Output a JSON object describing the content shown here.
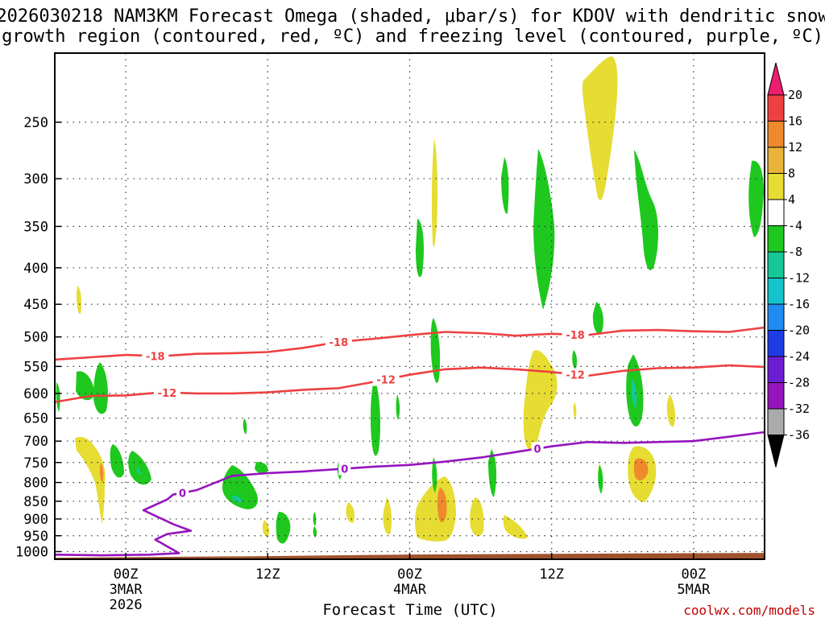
{
  "chart_data": {
    "type": "heatmap",
    "title_lines": [
      "2026030218 NAM3KM Forecast Omega (shaded, μbar/s) for KDOV with dendritic snow",
      "growth region (contoured, red, ºC) and freezing level (contoured, purple, ºC)"
    ],
    "xlabel": "Forecast Time (UTC)",
    "credit": "coolwx.com/models",
    "x_ticks": [
      {
        "hours": 6,
        "lines": [
          "00Z",
          "3MAR",
          "2026"
        ]
      },
      {
        "hours": 18,
        "lines": [
          "12Z"
        ]
      },
      {
        "hours": 30,
        "lines": [
          "00Z",
          "4MAR"
        ]
      },
      {
        "hours": 42,
        "lines": [
          "12Z"
        ]
      },
      {
        "hours": 54,
        "lines": [
          "00Z",
          "5MAR"
        ]
      }
    ],
    "xlim_hours": [
      0,
      60
    ],
    "y_scale": "log-pressure",
    "ylim_hPa": [
      1025,
      200
    ],
    "y_ticks": [
      250,
      300,
      350,
      400,
      450,
      500,
      550,
      600,
      650,
      700,
      750,
      800,
      850,
      900,
      950,
      1000
    ],
    "grid": true,
    "colorbar": {
      "levels": [
        20,
        16,
        12,
        8,
        4,
        -4,
        -8,
        -12,
        -16,
        -20,
        -24,
        -28,
        -32,
        -36
      ],
      "colors": [
        "#ee1e6e",
        "#ee4040",
        "#ee8a2c",
        "#e8b43a",
        "#e6dc32",
        "#ffffff",
        "#1ec81e",
        "#16c896",
        "#14c4cc",
        "#1e8cf0",
        "#1e3ce6",
        "#6e1ed2",
        "#9614be",
        "#aaaaaa",
        "#000000"
      ]
    },
    "series": [
      {
        "name": "-18",
        "color": "#ee4040",
        "points": [
          [
            0,
            538
          ],
          [
            3,
            534
          ],
          [
            6,
            530
          ],
          [
            9,
            532
          ],
          [
            12,
            528
          ],
          [
            15,
            527
          ],
          [
            18,
            525
          ],
          [
            21,
            518
          ],
          [
            24,
            508
          ],
          [
            27,
            503
          ],
          [
            30,
            497
          ],
          [
            33,
            492
          ],
          [
            36,
            494
          ],
          [
            39,
            498
          ],
          [
            42,
            495
          ],
          [
            45,
            497
          ],
          [
            48,
            490
          ],
          [
            51,
            489
          ],
          [
            54,
            491
          ],
          [
            57,
            492
          ],
          [
            60,
            485
          ]
        ],
        "labels": [
          {
            "hours": 8.5,
            "text": "-18"
          },
          {
            "hours": 24,
            "text": "-18"
          },
          {
            "hours": 44,
            "text": "-18"
          }
        ]
      },
      {
        "name": "-12",
        "color": "#ee4040",
        "points": [
          [
            0,
            617
          ],
          [
            3,
            605
          ],
          [
            6,
            604
          ],
          [
            9,
            598
          ],
          [
            12,
            600
          ],
          [
            15,
            600
          ],
          [
            18,
            598
          ],
          [
            21,
            593
          ],
          [
            24,
            590
          ],
          [
            27,
            578
          ],
          [
            30,
            565
          ],
          [
            33,
            555
          ],
          [
            36,
            552
          ],
          [
            39,
            555
          ],
          [
            42,
            560
          ],
          [
            45,
            567
          ],
          [
            48,
            558
          ],
          [
            51,
            553
          ],
          [
            54,
            552
          ],
          [
            57,
            548
          ],
          [
            60,
            551
          ]
        ],
        "labels": [
          {
            "hours": 9.5,
            "text": "-12"
          },
          {
            "hours": 28,
            "text": "-12"
          },
          {
            "hours": 44,
            "text": "-12"
          }
        ]
      },
      {
        "name": "0",
        "color": "#9614be",
        "points": [
          [
            0,
            1010
          ],
          [
            4,
            1012
          ],
          [
            8,
            1010
          ],
          [
            10.5,
            1005
          ],
          [
            8.5,
            962
          ],
          [
            9.5,
            945
          ],
          [
            11.5,
            935
          ],
          [
            10,
            915
          ],
          [
            7.5,
            875
          ],
          [
            9.5,
            845
          ],
          [
            10,
            832
          ],
          [
            12,
            820
          ],
          [
            15,
            783
          ],
          [
            18,
            776
          ],
          [
            21,
            772
          ],
          [
            24,
            766
          ],
          [
            27,
            760
          ],
          [
            30,
            756
          ],
          [
            33,
            748
          ],
          [
            36,
            738
          ],
          [
            39,
            725
          ],
          [
            42,
            712
          ],
          [
            45,
            702
          ],
          [
            48,
            704
          ],
          [
            51,
            702
          ],
          [
            54,
            700
          ],
          [
            57,
            690
          ],
          [
            60,
            680
          ]
        ],
        "labels": [
          {
            "hours": 10.8,
            "text": "0"
          },
          {
            "hours": 24.5,
            "text": "0"
          },
          {
            "hours": 40.8,
            "text": "0"
          }
        ]
      }
    ],
    "terrain": {
      "color": "#a0522d",
      "pressure_hPa": 1012
    }
  }
}
